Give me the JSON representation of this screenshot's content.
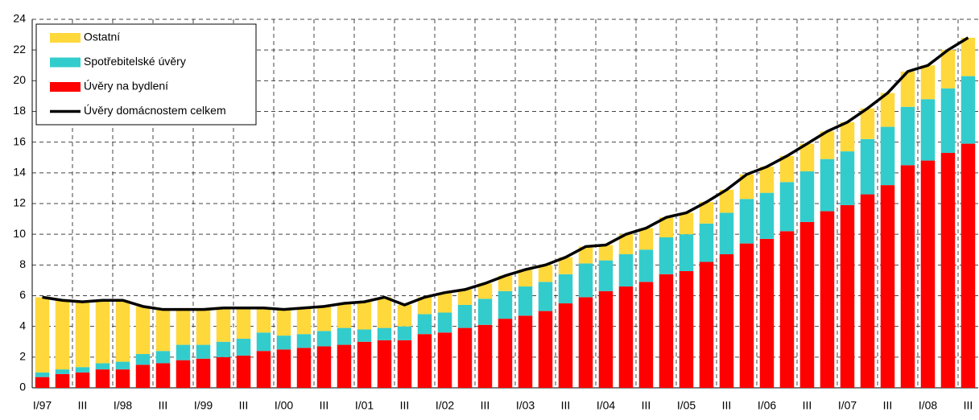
{
  "chart_data": {
    "type": "bar",
    "categories": [
      "I/97",
      null,
      "III",
      null,
      "I/98",
      null,
      "III",
      null,
      "I/99",
      null,
      "III",
      null,
      "I/00",
      null,
      "III",
      null,
      "I/01",
      null,
      "III",
      null,
      "I/02",
      null,
      "III",
      null,
      "I/03",
      null,
      "III",
      null,
      "I/04",
      null,
      "III",
      null,
      "I/05",
      null,
      "III",
      null,
      "I/06",
      null,
      "III",
      null,
      "I/07",
      null,
      "III",
      null,
      "I/08",
      null,
      "III"
    ],
    "series": [
      {
        "name": "Ostatní",
        "type": "bar",
        "color": "#ffd83c",
        "values": [
          4.9,
          4.5,
          4.25,
          4.1,
          4.0,
          3.1,
          2.7,
          2.3,
          2.3,
          2.2,
          2.0,
          1.6,
          1.7,
          1.7,
          1.6,
          1.6,
          1.8,
          2.0,
          1.4,
          1.1,
          1.3,
          1.0,
          1.0,
          1.0,
          1.1,
          1.1,
          1.1,
          1.1,
          1.0,
          1.3,
          1.4,
          1.3,
          1.4,
          1.4,
          1.5,
          1.6,
          1.7,
          1.7,
          1.8,
          1.8,
          1.9,
          2.0,
          2.2,
          2.3,
          2.2,
          2.5,
          2.5
        ]
      },
      {
        "name": "Spotřebitelské úvěry",
        "type": "bar",
        "color": "#33cccc",
        "values": [
          0.3,
          0.3,
          0.35,
          0.4,
          0.5,
          0.7,
          0.8,
          1.0,
          0.9,
          1.0,
          1.1,
          1.2,
          0.9,
          0.9,
          1.0,
          1.1,
          0.8,
          0.8,
          0.9,
          1.3,
          1.3,
          1.5,
          1.7,
          1.8,
          1.9,
          1.9,
          1.9,
          2.2,
          2.0,
          2.1,
          2.1,
          2.4,
          2.4,
          2.5,
          2.7,
          2.9,
          3.0,
          3.2,
          3.3,
          3.4,
          3.5,
          3.6,
          3.8,
          3.8,
          4.0,
          4.2,
          4.4
        ]
      },
      {
        "name": "Úvěry na bydlení",
        "type": "bar",
        "color": "#ff0000",
        "values": [
          0.7,
          0.9,
          1.0,
          1.2,
          1.2,
          1.5,
          1.6,
          1.8,
          1.9,
          2.0,
          2.1,
          2.4,
          2.5,
          2.6,
          2.7,
          2.8,
          3.0,
          3.1,
          3.1,
          3.5,
          3.6,
          3.9,
          4.1,
          4.5,
          4.7,
          5.0,
          5.5,
          5.9,
          6.3,
          6.6,
          6.9,
          7.4,
          7.6,
          8.2,
          8.7,
          9.4,
          9.7,
          10.2,
          10.8,
          11.5,
          11.9,
          12.6,
          13.2,
          14.5,
          14.8,
          15.3,
          15.9
        ]
      },
      {
        "name": "Úvěry domácnostem celkem",
        "type": "line",
        "color": "#000000",
        "values": [
          5.9,
          5.7,
          5.6,
          5.7,
          5.7,
          5.3,
          5.1,
          5.1,
          5.1,
          5.2,
          5.2,
          5.2,
          5.1,
          5.2,
          5.3,
          5.5,
          5.6,
          5.9,
          5.4,
          5.9,
          6.2,
          6.4,
          6.8,
          7.3,
          7.7,
          8.0,
          8.5,
          9.2,
          9.3,
          10.0,
          10.4,
          11.1,
          11.4,
          12.1,
          12.9,
          13.9,
          14.4,
          15.1,
          15.9,
          16.7,
          17.3,
          18.2,
          19.2,
          20.6,
          21.0,
          22.0,
          22.8
        ]
      }
    ],
    "ylim": [
      0,
      24
    ],
    "yticks": [
      0,
      2,
      4,
      6,
      8,
      10,
      12,
      14,
      16,
      18,
      20,
      22,
      24
    ],
    "grid": true,
    "legend": "top-left"
  }
}
